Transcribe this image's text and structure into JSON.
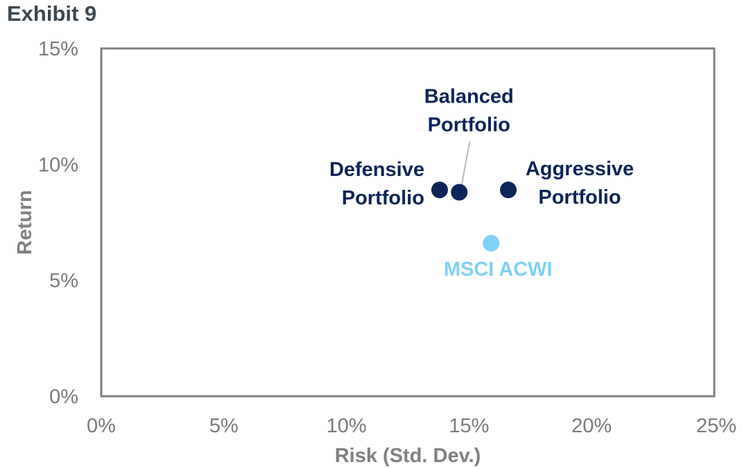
{
  "header": {
    "exhibit_label": "Exhibit 9"
  },
  "chart_data": {
    "type": "scatter",
    "xlabel": "Risk (Std. Dev.)",
    "ylabel": "Return",
    "xlim": [
      0,
      25
    ],
    "ylim": [
      0,
      15
    ],
    "x_ticks": [
      "0%",
      "5%",
      "10%",
      "15%",
      "20%",
      "25%"
    ],
    "y_ticks": [
      "0%",
      "5%",
      "10%",
      "15%"
    ],
    "grid": false,
    "points": [
      {
        "label": [
          "Defensive",
          "Portfolio"
        ],
        "x": 13.8,
        "y": 8.9,
        "color": "#0d2459"
      },
      {
        "label": [
          "Balanced",
          "Portfolio"
        ],
        "x": 14.6,
        "y": 8.8,
        "color": "#0d2459"
      },
      {
        "label": [
          "Aggressive",
          "Portfolio"
        ],
        "x": 16.6,
        "y": 8.9,
        "color": "#0d2459"
      },
      {
        "label": [
          "MSCI ACWI"
        ],
        "x": 15.9,
        "y": 6.6,
        "color": "#7fd0f5"
      }
    ]
  }
}
